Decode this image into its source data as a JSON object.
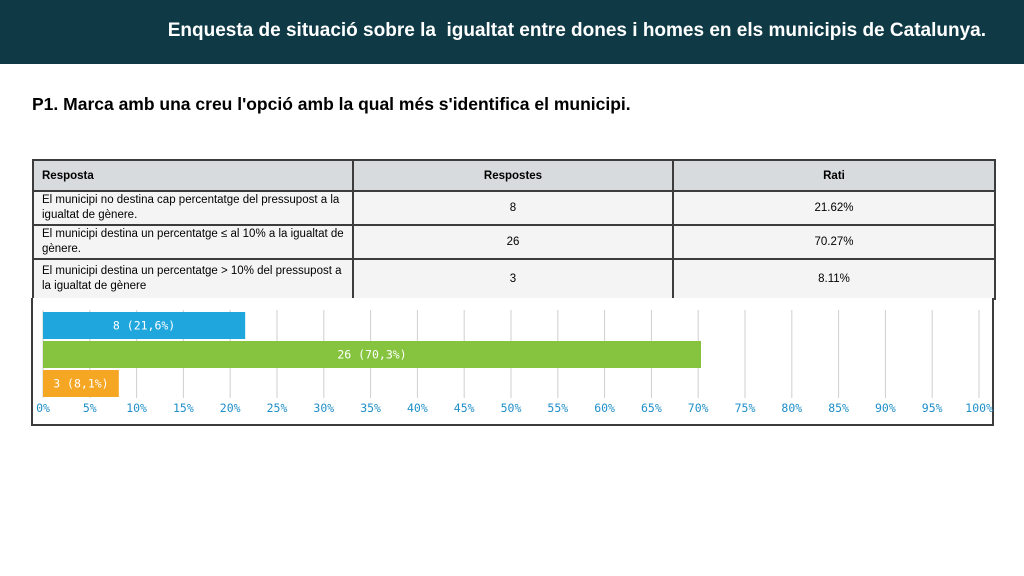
{
  "header": {
    "title": "Enquesta de situació sobre la  igualtat entre dones i homes en els municipis de Catalunya.",
    "background": "#0f3a45"
  },
  "question": {
    "text": "P1. Marca amb una creu l'opció amb la qual més s'identifica el municipi."
  },
  "table": {
    "headers": [
      "Resposta",
      "Respostes",
      "Rati"
    ],
    "rows": [
      {
        "resposta": "El municipi no destina cap percentatge del pressupost a la igualtat de gènere.",
        "respostes": "8",
        "rati": "21.62%"
      },
      {
        "resposta": "El municipi destina un percentatge ≤ al 10% a la igualtat de gènere.",
        "respostes": "26",
        "rati": "70.27%"
      },
      {
        "resposta": "El municipi destina un percentatge > 10% del pressupost a la igualtat de gènere",
        "respostes": "3",
        "rati": "8.11%"
      }
    ]
  },
  "chart_data": {
    "type": "bar",
    "orientation": "horizontal",
    "series": [
      {
        "value": 21.6,
        "label": "8 (21,6%)",
        "color": "#1ea6dd"
      },
      {
        "value": 70.3,
        "label": "26 (70,3%)",
        "color": "#86c440"
      },
      {
        "value": 8.1,
        "label": "3 (8,1%)",
        "color": "#f5a623"
      }
    ],
    "xlim": [
      0,
      100
    ],
    "x_ticks": [
      "0%",
      "5%",
      "10%",
      "15%",
      "20%",
      "25%",
      "30%",
      "35%",
      "40%",
      "45%",
      "50%",
      "55%",
      "60%",
      "65%",
      "70%",
      "75%",
      "80%",
      "85%",
      "90%",
      "95%",
      "100%"
    ],
    "grid": true,
    "grid_color": "#cfcfcf",
    "tick_color": "#1f8fc8"
  }
}
